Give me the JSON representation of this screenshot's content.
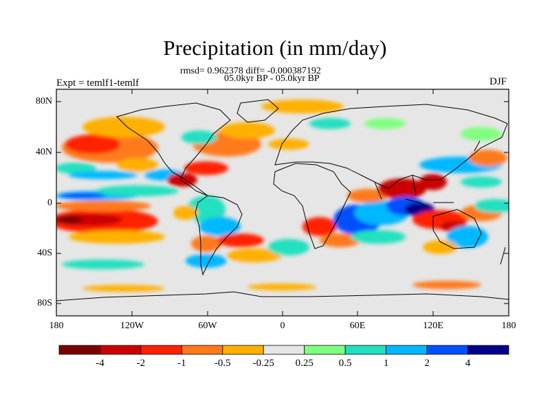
{
  "title": "Precipitation (in mm/day)",
  "subtitle_line1": "rmsd= 0.962378 diff= -0.000387192",
  "subtitle_line2": "05.0kyr BP - 05.0kyr BP",
  "left_label": "Expt = temlf1-temlf",
  "right_label": "DJF",
  "y_ticks": [
    "80N",
    "40N",
    "0",
    "40S",
    "80S"
  ],
  "x_ticks": [
    "180",
    "120W",
    "60W",
    "0",
    "60E",
    "120E",
    "180"
  ],
  "colorbar": {
    "colors": [
      "#7a0000",
      "#cc0000",
      "#ff2200",
      "#ff7a1a",
      "#ffb000",
      "#e6e6e6",
      "#80ff80",
      "#20e0c0",
      "#00b8ff",
      "#0050ff",
      "#000088"
    ],
    "labels": [
      "-4",
      "-2",
      "-1",
      "-0.5",
      "-0.25",
      "0.25",
      "0.5",
      "1",
      "2",
      "4"
    ]
  },
  "chart_data": {
    "type": "heatmap",
    "title": "Precipitation (in mm/day)",
    "x_range": [
      -180,
      180
    ],
    "y_range": [
      -90,
      90
    ],
    "levels": [
      -4,
      -2,
      -1,
      -0.5,
      -0.25,
      0.25,
      0.5,
      1,
      2,
      4
    ],
    "background_color": "#e6e6e6"
  }
}
